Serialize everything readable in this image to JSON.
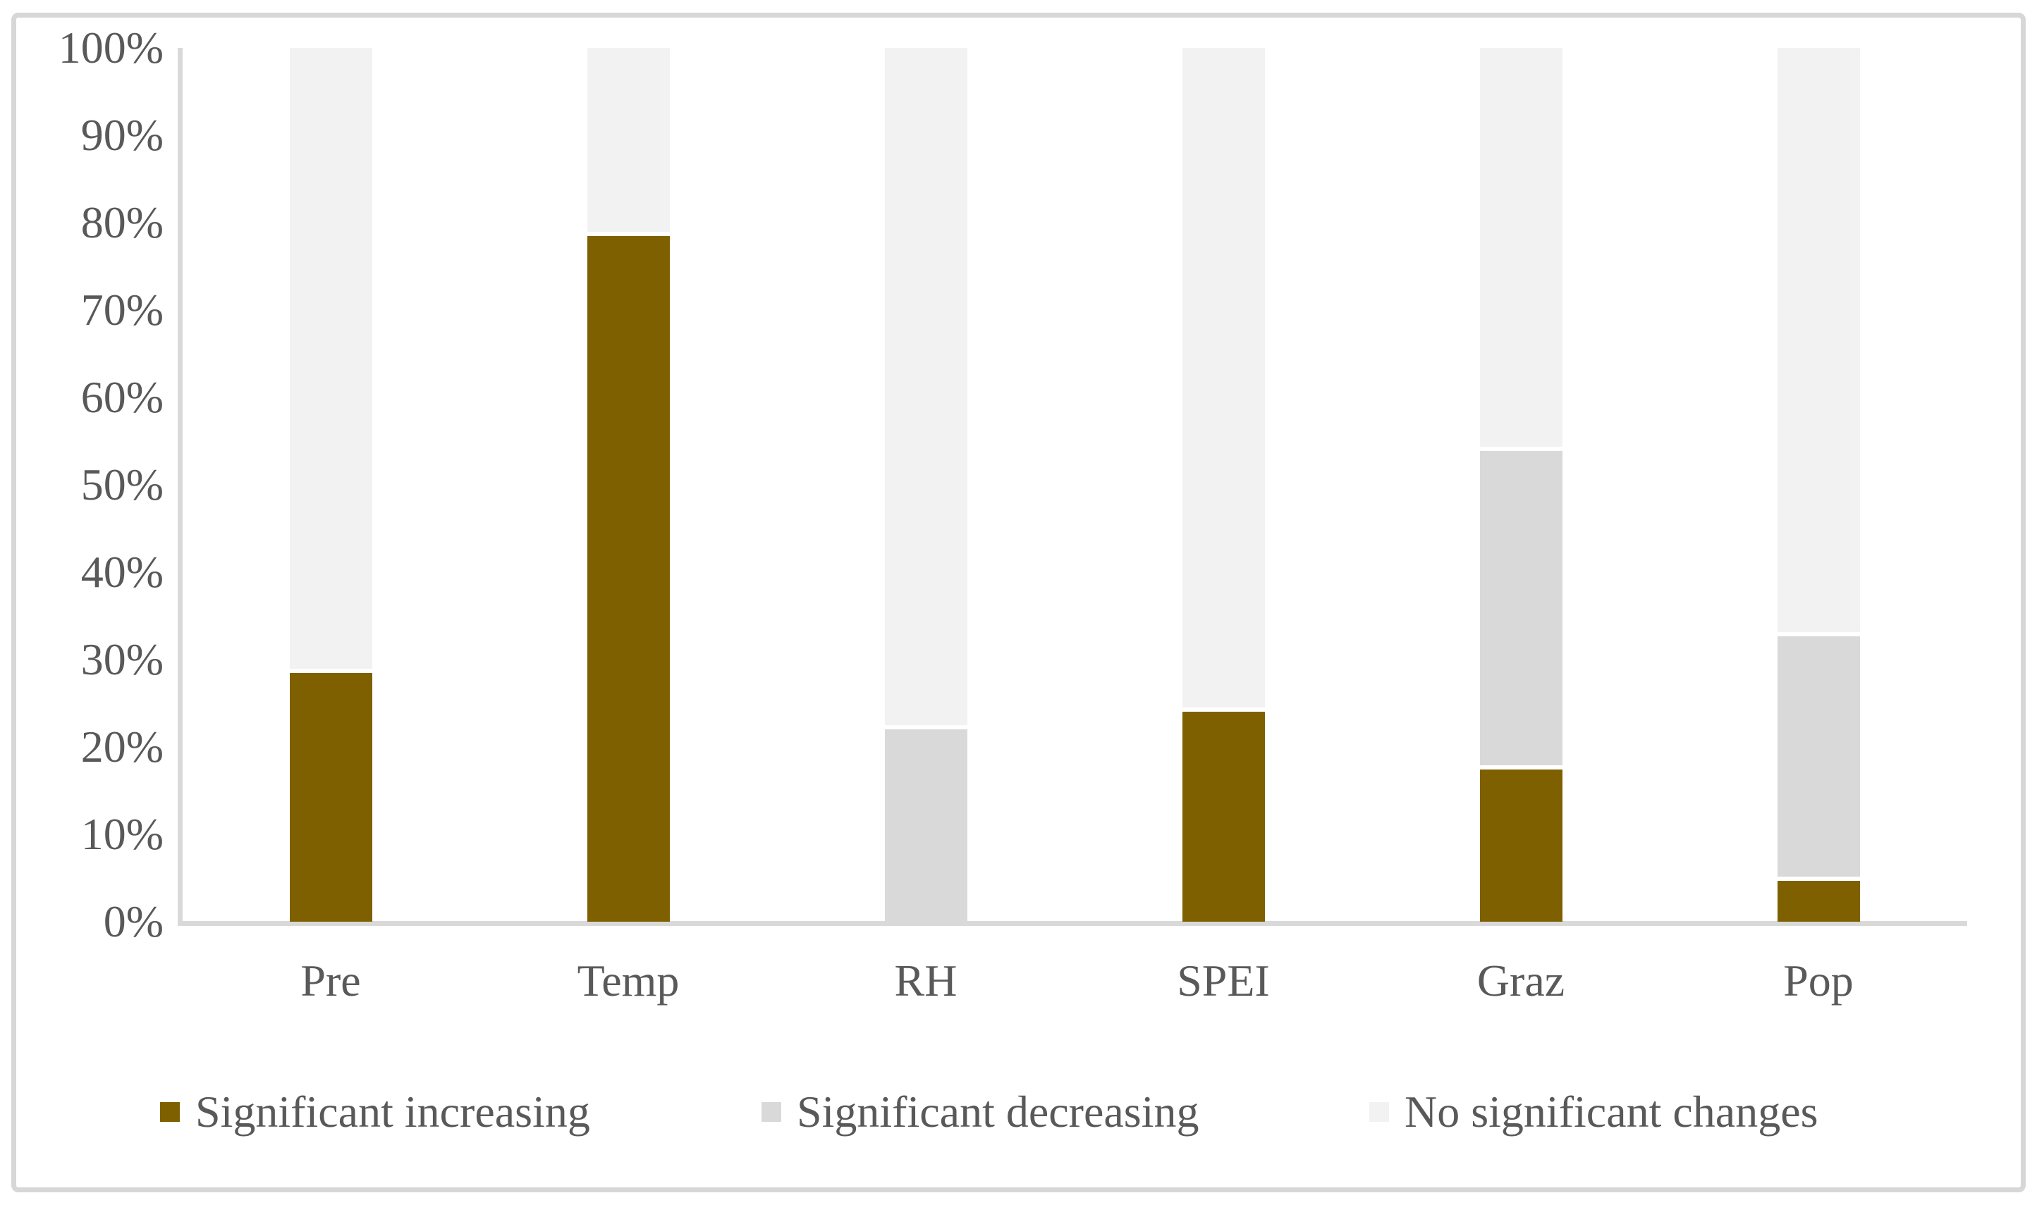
{
  "figure": {
    "background": "#ffffff",
    "border_color": "#d7d7d7",
    "axis_color": "#d9d9d9",
    "text_color": "#595959"
  },
  "chart_data": {
    "type": "bar",
    "stacked": true,
    "stacked_unit": "percent",
    "title": "",
    "xlabel": "",
    "ylabel": "",
    "ylim": [
      0,
      100
    ],
    "grid": false,
    "legend_position": "bottom",
    "categories": [
      "Pre",
      "Temp",
      "RH",
      "SPEI",
      "Graz",
      "Pop"
    ],
    "series": [
      {
        "name": "Significant increasing",
        "color": "#7F6000",
        "values": [
          28.5,
          78.5,
          0,
          24.0,
          17.4,
          4.7
        ]
      },
      {
        "name": "Significant decreasing",
        "color": "#D9D9D9",
        "values": [
          0,
          0,
          22.0,
          0,
          36.5,
          28.0
        ]
      },
      {
        "name": "No significant changes",
        "color": "#F2F2F2",
        "values": [
          71.5,
          21.5,
          78.0,
          76.0,
          46.1,
          67.3
        ]
      }
    ],
    "y_ticks": [
      "0%",
      "10%",
      "20%",
      "30%",
      "40%",
      "50%",
      "60%",
      "70%",
      "80%",
      "90%",
      "100%"
    ]
  }
}
